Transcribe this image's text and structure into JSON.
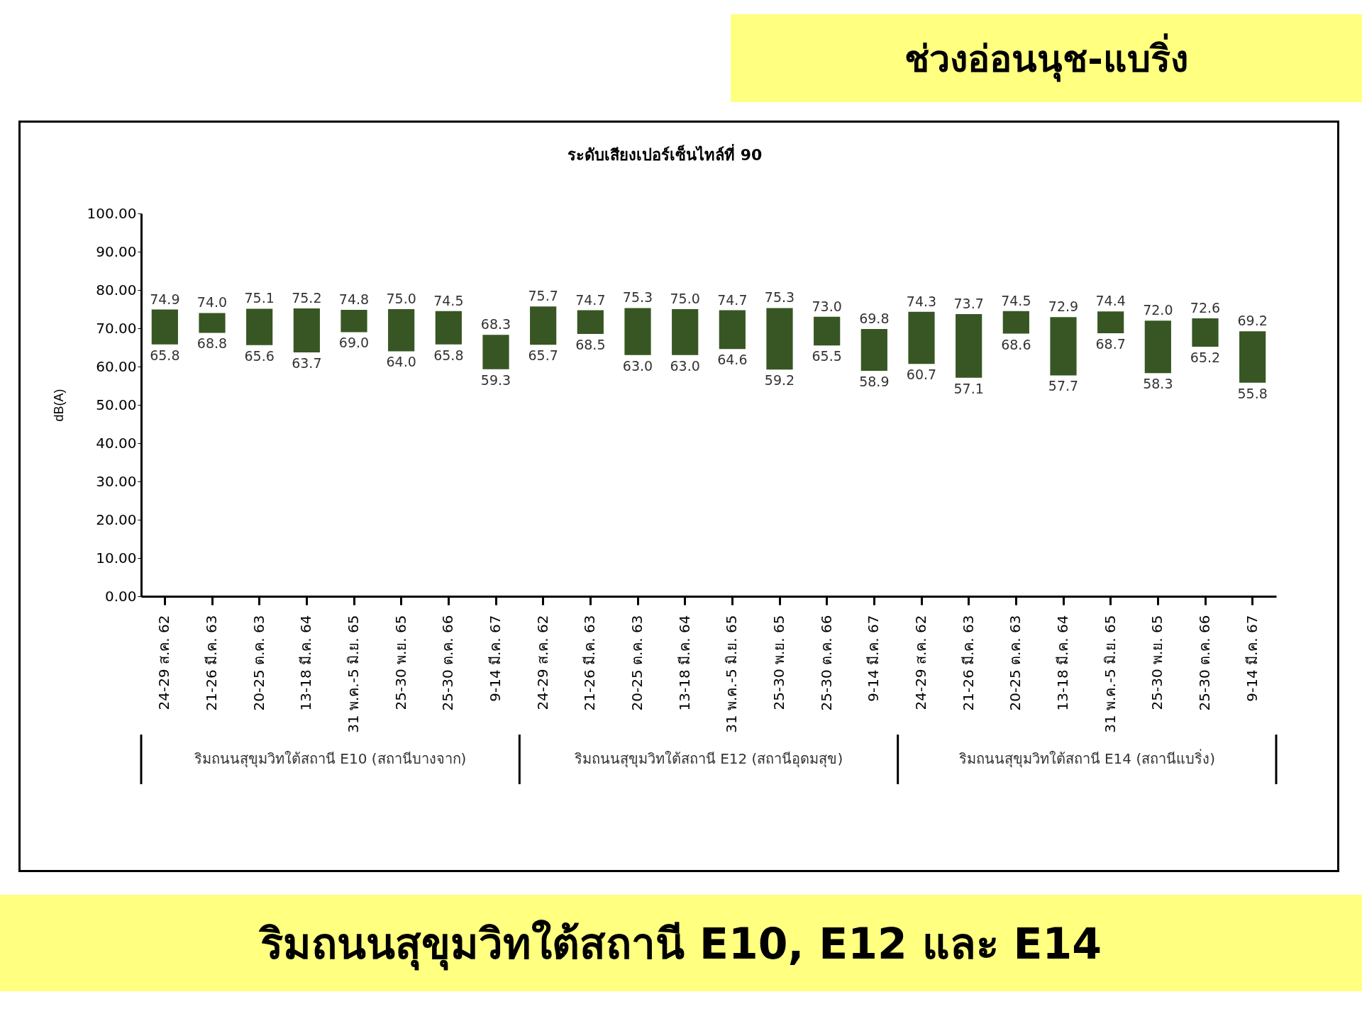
{
  "chart_data": {
    "type": "bar",
    "title": "ระดับเสียงเปอร์เซ็นไทล์ที่ 90",
    "ylabel": "dB(A)",
    "color": "#375623",
    "categories": [
      "24-29 ส.ค. 62",
      "21-26 มี.ค. 63",
      "20-25 ต.ค. 63",
      "13-18 มี.ค. 64",
      "31 พ.ค.-5 มิ.ย. 65",
      "25-30 พ.ย. 65",
      "25-30 ต.ค. 66",
      "9-14 มี.ค. 67",
      "24-29 ส.ค. 62",
      "21-26 มี.ค. 63",
      "20-25 ต.ค. 63",
      "13-18 มี.ค. 64",
      "31 พ.ค.-5 มิ.ย. 65",
      "25-30 พ.ย. 65",
      "25-30 ต.ค. 66",
      "9-14 มี.ค. 67",
      "24-29 ส.ค. 62",
      "21-26 มี.ค. 63",
      "20-25 ต.ค. 63",
      "13-18 มี.ค. 64",
      "31 พ.ค.-5 มิ.ย. 65",
      "25-30 พ.ย. 65",
      "25-30 ต.ค. 66",
      "9-14 มี.ค. 67"
    ],
    "base": [
      65.8,
      68.8,
      65.6,
      63.7,
      69.0,
      64.0,
      65.8,
      59.3,
      65.7,
      68.5,
      63.0,
      63.0,
      64.6,
      59.2,
      65.5,
      58.9,
      60.7,
      57.1,
      68.6,
      57.7,
      68.7,
      58.3,
      65.2,
      55.8
    ],
    "values": [
      9.1,
      5.2,
      9.5,
      11.5,
      5.8,
      11.0,
      8.7,
      9.0,
      10.0,
      6.2,
      12.3,
      12.0,
      10.1,
      16.1,
      7.5,
      10.9,
      13.6,
      16.6,
      5.9,
      15.2,
      5.7,
      13.7,
      7.4,
      13.4
    ],
    "ylim": [
      0,
      100
    ],
    "yticks": [
      {
        "value": 0,
        "label": "0.00"
      },
      {
        "value": 10,
        "label": "10.00"
      },
      {
        "value": 20,
        "label": "20.00"
      },
      {
        "value": 30,
        "label": "30.00"
      },
      {
        "value": 40,
        "label": "40.00"
      },
      {
        "value": 50,
        "label": "50.00"
      },
      {
        "value": 60,
        "label": "60.00"
      },
      {
        "value": 70,
        "label": "70.00"
      },
      {
        "value": 80,
        "label": "80.00"
      },
      {
        "value": 90,
        "label": "90.00"
      },
      {
        "value": 100,
        "label": "100.00"
      }
    ],
    "grid": false,
    "annotations": [
      "ช่วงอ่อนนุช-แบริ่ง",
      "ริมถนนสุขุมวิทใต้สถานี E10 (สถานีบางจาก)",
      "ริมถนนสุขุมวิทใต้สถานี E12 (สถานีอุดมสุข)",
      "ริมถนนสุขุมวิทใต้สถานี E14 (สถานีแบริ่ง)",
      "ริมถนนสุขุมวิทใต้สถานี E10, E12 และ E14",
      "74.9",
      "65.8",
      "74.0",
      "68.8",
      "75.1",
      "65.6",
      "75.2",
      "63.7",
      "74.8",
      "69.0",
      "75.0",
      "64.0",
      "74.5",
      "65.8",
      "68.3",
      "59.3",
      "75.7",
      "65.7",
      "74.7",
      "68.5",
      "75.3",
      "63.0",
      "75.0",
      "63.0",
      "74.7",
      "64.6",
      "75.3",
      "59.2",
      "73.0",
      "65.5",
      "69.8",
      "58.9",
      "74.3",
      "60.7",
      "73.7",
      "57.1",
      "74.5",
      "68.6",
      "72.9",
      "57.7",
      "74.4",
      "68.7",
      "72.0",
      "58.3",
      "72.6",
      "65.2",
      "69.2",
      "55.8"
    ]
  }
}
